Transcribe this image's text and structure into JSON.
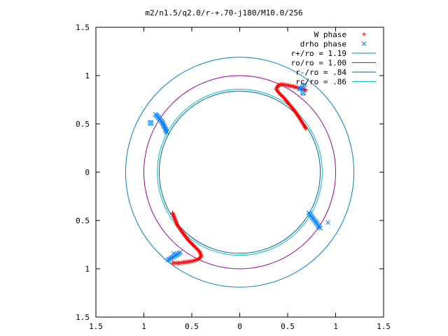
{
  "chart_data": {
    "type": "scatter",
    "title": "m2/n1.5/q2.0/r-+.70-j180/M10.0/256",
    "xlabel": "",
    "ylabel": "",
    "xlim": [
      -1.5,
      1.5
    ],
    "ylim": [
      -1.5,
      1.5
    ],
    "x_ticks": [
      -1.5,
      -1,
      -0.5,
      0,
      0.5,
      1,
      1.5
    ],
    "y_ticks": [
      -1.5,
      -1,
      -0.5,
      0,
      0.5,
      1,
      1.5
    ],
    "x_tick_labels": [
      "1.5",
      "1",
      "0.5",
      "0",
      "0.5",
      "1",
      "1.5"
    ],
    "y_tick_labels": [
      "1.5",
      "1",
      "0.5",
      "0",
      "0.5",
      "1",
      "1.5"
    ],
    "grid": false,
    "legend_position": "top-right",
    "series": [
      {
        "name": "W phase",
        "kind": "points",
        "marker": "plus",
        "color": "#ff0000",
        "segments": [
          [
            [
              0.69,
              0.85
            ],
            [
              0.62,
              0.87
            ],
            [
              0.55,
              0.89
            ],
            [
              0.5,
              0.9
            ],
            [
              0.44,
              0.91
            ],
            [
              0.4,
              0.9
            ],
            [
              0.38,
              0.86
            ],
            [
              0.41,
              0.82
            ],
            [
              0.46,
              0.77
            ],
            [
              0.51,
              0.71
            ],
            [
              0.57,
              0.64
            ],
            [
              0.63,
              0.55
            ],
            [
              0.69,
              0.45
            ]
          ],
          [
            [
              -0.7,
              -0.94
            ],
            [
              -0.63,
              -0.94
            ],
            [
              -0.56,
              -0.93
            ],
            [
              -0.49,
              -0.92
            ],
            [
              -0.43,
              -0.9
            ],
            [
              -0.4,
              -0.87
            ],
            [
              -0.42,
              -0.82
            ],
            [
              -0.47,
              -0.77
            ],
            [
              -0.54,
              -0.7
            ],
            [
              -0.6,
              -0.62
            ],
            [
              -0.65,
              -0.55
            ],
            [
              -0.7,
              -0.42
            ]
          ]
        ]
      },
      {
        "name": "drho phase",
        "kind": "points",
        "marker": "cross",
        "color": "#0080ff",
        "segments": [
          [
            [
              0.62,
              0.86
            ],
            [
              0.64,
              0.87
            ],
            [
              0.66,
              0.89
            ],
            [
              0.68,
              0.91
            ]
          ],
          [
            [
              -0.88,
              0.6
            ],
            [
              -0.85,
              0.57
            ],
            [
              -0.81,
              0.52
            ],
            [
              -0.78,
              0.46
            ],
            [
              -0.76,
              0.41
            ]
          ],
          [
            [
              0.72,
              -0.42
            ],
            [
              0.75,
              -0.46
            ],
            [
              0.78,
              -0.5
            ],
            [
              0.81,
              -0.54
            ],
            [
              0.84,
              -0.58
            ]
          ],
          [
            [
              -0.75,
              -0.91
            ],
            [
              -0.7,
              -0.88
            ],
            [
              -0.65,
              -0.85
            ],
            [
              -0.62,
              -0.83
            ]
          ]
        ],
        "outliers": [
          [
            0.66,
            0.82
          ],
          [
            -0.93,
            0.51
          ],
          [
            0.92,
            -0.52
          ],
          [
            -0.69,
            -0.84
          ]
        ]
      },
      {
        "name": "r+/ro = 1.19",
        "kind": "circle",
        "radius": 1.19,
        "color": "#0080c0"
      },
      {
        "name": "ro/ro = 1.00",
        "kind": "circle",
        "radius": 1.0,
        "color": "#a000a0"
      },
      {
        "name": "r-/ro = .84",
        "kind": "circle",
        "radius": 0.84,
        "color": "#0060a0"
      },
      {
        "name": "rc/ro = .86",
        "kind": "circle",
        "radius": 0.86,
        "color": "#00c0c0"
      }
    ]
  }
}
